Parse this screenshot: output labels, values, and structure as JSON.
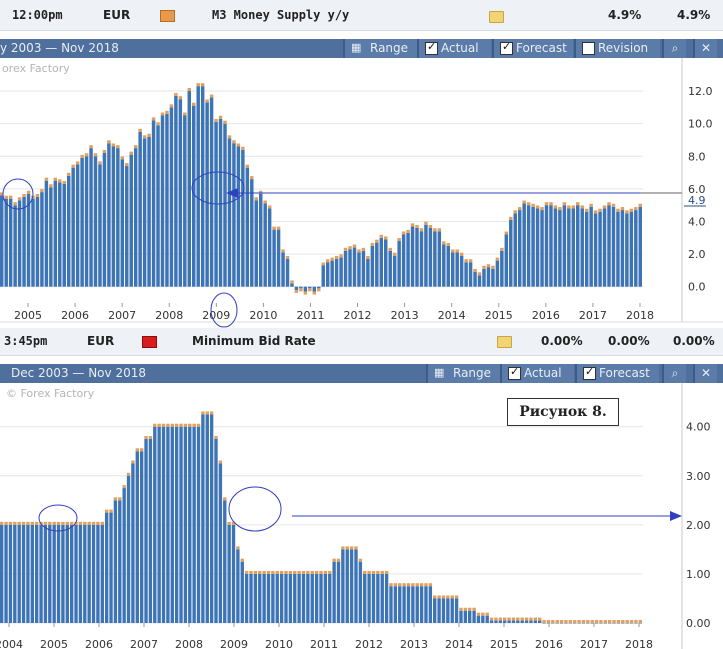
{
  "row1": {
    "time": "12:00pm",
    "currency": "EUR",
    "event": "M3 Money Supply y/y",
    "actual": "4.9%",
    "forecast": "4.9%"
  },
  "row2": {
    "time": "3:45pm",
    "currency": "EUR",
    "event": "Minimum Bid Rate",
    "actual": "0.00%",
    "forecast": "0.00%",
    "previous": "0.00%"
  },
  "chart1_toolbar": {
    "range_text": "y 2003 — Nov 2018",
    "range_label": "Range",
    "actual_label": "Actual",
    "forecast_label": "Forecast",
    "revision_label": "Revision"
  },
  "chart2_toolbar": {
    "range_text": "Dec 2003 — Nov 2018",
    "range_label": "Range",
    "actual_label": "Actual",
    "forecast_label": "Forecast"
  },
  "caption": "Рисунок 8.",
  "colors": {
    "bar": "#3d74b6",
    "forecast_marker": "#e0a060",
    "toolbar": "#4f6f9c",
    "annotation": "#3040c0"
  },
  "chart_data": [
    {
      "type": "bar",
      "watermark": "orex Factory",
      "ylim": [
        -1.0,
        12.8
      ],
      "yticks": [
        "0.0",
        "2.0",
        "4.0",
        "6.0",
        "8.0",
        "10.0",
        "12.0"
      ],
      "xticks": [
        "2005",
        "2006",
        "2007",
        "2008",
        "2009",
        "2010",
        "2011",
        "2012",
        "2013",
        "2014",
        "2015",
        "2016",
        "2017",
        "2018"
      ],
      "last_value_label": "4.9",
      "series": [
        {
          "values": [
            5.6,
            5.4,
            5.4,
            5.0,
            5.3,
            5.5,
            5.7,
            5.4,
            5.5,
            5.8,
            6.5,
            6.1,
            6.5,
            6.4,
            6.3,
            6.8,
            7.3,
            7.5,
            7.9,
            8.0,
            8.5,
            8.0,
            7.5,
            8.2,
            8.8,
            8.6,
            8.5,
            7.8,
            7.4,
            8.1,
            8.5,
            9.5,
            9.1,
            9.2,
            10.2,
            9.9,
            10.5,
            10.6,
            11.0,
            11.7,
            11.5,
            10.5,
            12.0,
            11.1,
            12.3,
            12.3,
            11.3,
            11.6,
            10.1,
            10.3,
            10.0,
            9.1,
            8.8,
            8.6,
            8.4,
            7.3,
            6.6,
            5.3,
            5.7,
            5.1,
            4.8,
            3.5,
            3.5,
            2.1,
            1.7,
            0.2,
            -0.2,
            -0.1,
            -0.3,
            -0.1,
            -0.3,
            -0.1,
            1.3,
            1.5,
            1.6,
            1.7,
            1.8,
            2.2,
            2.3,
            2.4,
            2.1,
            2.2,
            1.7,
            2.5,
            2.7,
            3.0,
            2.9,
            2.2,
            1.9,
            2.8,
            3.2,
            3.3,
            3.7,
            3.6,
            3.4,
            3.8,
            3.6,
            3.4,
            3.4,
            2.6,
            2.5,
            2.1,
            2.1,
            1.9,
            1.5,
            1.5,
            0.9,
            0.7,
            1.1,
            1.2,
            1.1,
            1.6,
            2.2,
            3.2,
            4.1,
            4.5,
            4.7,
            5.1,
            5.0,
            4.9,
            4.8,
            4.7,
            5.0,
            5.0,
            4.8,
            4.7,
            5.0,
            4.8,
            4.8,
            5.0,
            4.8,
            4.6,
            4.9,
            4.5,
            4.6,
            4.8,
            5.0,
            4.9,
            4.6,
            4.7,
            4.5,
            4.6,
            4.7,
            4.9
          ]
        }
      ]
    },
    {
      "type": "bar",
      "watermark": "© Forex Factory",
      "ylim": [
        0,
        4.3
      ],
      "yticks": [
        "0.00",
        "1.00",
        "2.00",
        "3.00",
        "4.00"
      ],
      "xticks": [
        "2004",
        "2005",
        "2006",
        "2007",
        "2008",
        "2009",
        "2010",
        "2011",
        "2012",
        "2013",
        "2014",
        "2015",
        "2016",
        "2017",
        "2018"
      ],
      "series": [
        {
          "values": [
            2.0,
            2.0,
            2.0,
            2.0,
            2.0,
            2.0,
            2.0,
            2.0,
            2.0,
            2.0,
            2.0,
            2.0,
            2.0,
            2.0,
            2.0,
            2.0,
            2.0,
            2.0,
            2.0,
            2.0,
            2.0,
            2.0,
            2.0,
            2.0,
            2.25,
            2.25,
            2.5,
            2.5,
            2.75,
            3.0,
            3.25,
            3.5,
            3.5,
            3.75,
            3.75,
            4.0,
            4.0,
            4.0,
            4.0,
            4.0,
            4.0,
            4.0,
            4.0,
            4.0,
            4.0,
            4.0,
            4.25,
            4.25,
            4.25,
            3.75,
            3.25,
            2.5,
            2.0,
            2.0,
            1.5,
            1.25,
            1.0,
            1.0,
            1.0,
            1.0,
            1.0,
            1.0,
            1.0,
            1.0,
            1.0,
            1.0,
            1.0,
            1.0,
            1.0,
            1.0,
            1.0,
            1.0,
            1.0,
            1.0,
            1.0,
            1.0,
            1.25,
            1.25,
            1.5,
            1.5,
            1.5,
            1.5,
            1.25,
            1.0,
            1.0,
            1.0,
            1.0,
            1.0,
            1.0,
            0.75,
            0.75,
            0.75,
            0.75,
            0.75,
            0.75,
            0.75,
            0.75,
            0.75,
            0.75,
            0.5,
            0.5,
            0.5,
            0.5,
            0.5,
            0.5,
            0.25,
            0.25,
            0.25,
            0.25,
            0.15,
            0.15,
            0.15,
            0.05,
            0.05,
            0.05,
            0.05,
            0.05,
            0.05,
            0.05,
            0.05,
            0.05,
            0.05,
            0.05,
            0.05,
            0.0,
            0.0,
            0.0,
            0.0,
            0.0,
            0.0,
            0.0,
            0.0,
            0.0,
            0.0,
            0.0,
            0.0,
            0.0,
            0.0,
            0.0,
            0.0,
            0.0,
            0.0,
            0.0,
            0.0,
            0.0,
            0.0,
            0.0
          ]
        }
      ]
    }
  ]
}
